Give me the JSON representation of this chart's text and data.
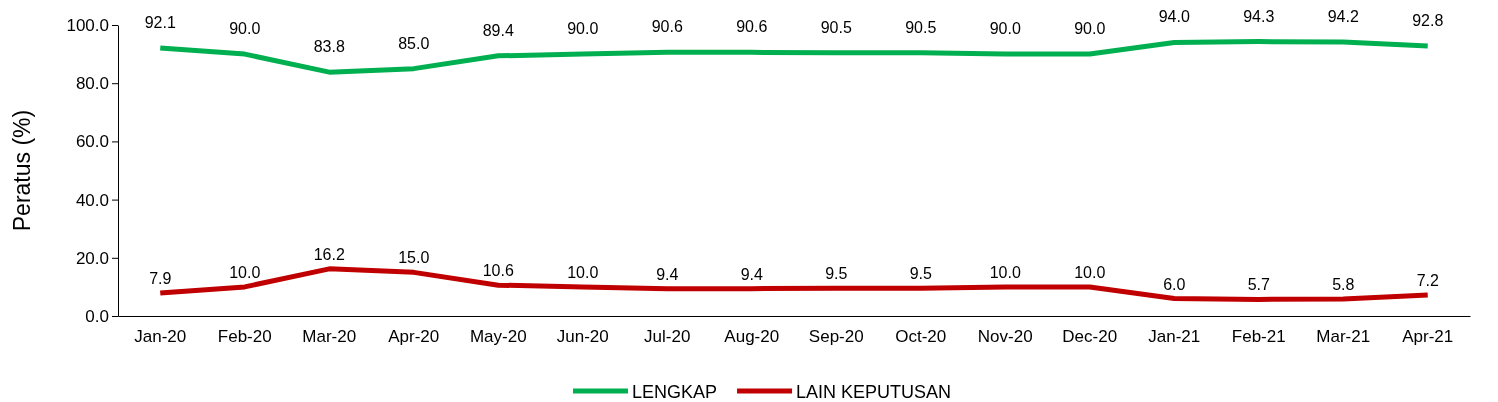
{
  "chart_data": {
    "type": "line",
    "ylabel": "Peratus (%)",
    "categories": [
      "Jan-20",
      "Feb-20",
      "Mar-20",
      "Apr-20",
      "May-20",
      "Jun-20",
      "Jul-20",
      "Aug-20",
      "Sep-20",
      "Oct-20",
      "Nov-20",
      "Dec-20",
      "Jan-21",
      "Feb-21",
      "Mar-21",
      "Apr-21"
    ],
    "series": [
      {
        "name": "LENGKAP",
        "color": "#00b050",
        "values": [
          92.1,
          90.0,
          83.8,
          85.0,
          89.4,
          90.0,
          90.6,
          90.6,
          90.5,
          90.5,
          90.0,
          90.0,
          94.0,
          94.3,
          94.2,
          92.8
        ],
        "value_labels": [
          "92.1",
          "90.0",
          "83.8",
          "85.0",
          "89.4",
          "90.0",
          "90.6",
          "90.6",
          "90.5",
          "90.5",
          "90.0",
          "90.0",
          "94.0",
          "94.3",
          "94.2",
          "92.8"
        ]
      },
      {
        "name": "LAIN KEPUTUSAN",
        "color": "#c00000",
        "values": [
          7.9,
          10.0,
          16.2,
          15.0,
          10.6,
          10.0,
          9.4,
          9.4,
          9.5,
          9.5,
          10.0,
          10.0,
          6.0,
          5.7,
          5.8,
          7.2
        ],
        "value_labels": [
          "7.9",
          "10.0",
          "16.2",
          "15.0",
          "10.6",
          "10.0",
          "9.4",
          "9.4",
          "9.5",
          "9.5",
          "10.0",
          "10.0",
          "6.0",
          "5.7",
          "5.8",
          "7.2"
        ]
      }
    ],
    "ylim": [
      0,
      100
    ],
    "yticks": [
      {
        "value": 0,
        "label": "0.0"
      },
      {
        "value": 20,
        "label": "20.0"
      },
      {
        "value": 40,
        "label": "40.0"
      },
      {
        "value": 60,
        "label": "60.0"
      },
      {
        "value": 80,
        "label": "80.0"
      },
      {
        "value": 100,
        "label": "100.0"
      }
    ],
    "grid": false,
    "legend": "bottom",
    "marker": "none",
    "line_style": "solid"
  }
}
